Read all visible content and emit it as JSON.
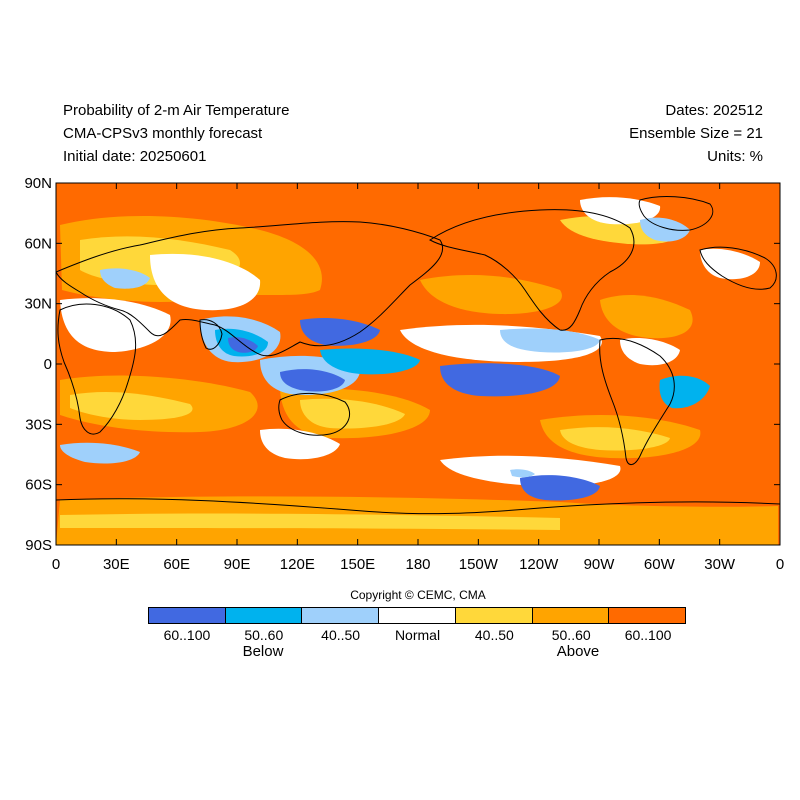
{
  "header": {
    "title": "Probability of 2-m Air Temperature",
    "model": "CMA-CPSv3 monthly forecast",
    "initial": "Initial date: 20250601",
    "dates": "Dates: 202512",
    "ensemble": "Ensemble Size = 21",
    "units": "Units: %"
  },
  "axes": {
    "lat_ticks": [
      "90N",
      "60N",
      "30N",
      "0",
      "30S",
      "60S",
      "90S"
    ],
    "lon_ticks": [
      "0",
      "30E",
      "60E",
      "90E",
      "120E",
      "150E",
      "180",
      "150W",
      "120W",
      "90W",
      "60W",
      "30W",
      "0"
    ]
  },
  "map": {
    "background_color": "#ff6a00",
    "land_outline_color": "#000000"
  },
  "copyright": "Copyright © CEMC, CMA",
  "legend": {
    "categories": [
      {
        "label": "60..100",
        "color": "#4169e1"
      },
      {
        "label": "50..60",
        "color": "#00b2ee"
      },
      {
        "label": "40..50",
        "color": "#9fd0fb"
      },
      {
        "label": "Normal",
        "color": "#ffffff"
      },
      {
        "label": "40..50",
        "color": "#ffd83a"
      },
      {
        "label": "50..60",
        "color": "#ffa400"
      },
      {
        "label": "60..100",
        "color": "#ff6a00"
      }
    ],
    "below_label": "Below",
    "above_label": "Above"
  }
}
